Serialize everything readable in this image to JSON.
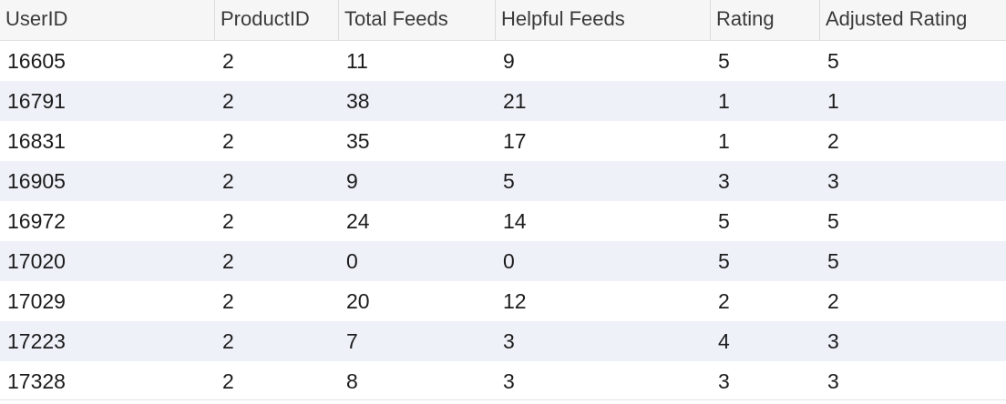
{
  "table": {
    "columns": [
      "UserID",
      "ProductID",
      "Total Feeds",
      "Helpful Feeds",
      "Rating",
      "Adjusted Rating"
    ],
    "rows": [
      [
        "16605",
        "2",
        "11",
        "9",
        "5",
        "5"
      ],
      [
        "16791",
        "2",
        "38",
        "21",
        "1",
        "1"
      ],
      [
        "16831",
        "2",
        "35",
        "17",
        "1",
        "2"
      ],
      [
        "16905",
        "2",
        "9",
        "5",
        "3",
        "3"
      ],
      [
        "16972",
        "2",
        "24",
        "14",
        "5",
        "5"
      ],
      [
        "17020",
        "2",
        "0",
        "0",
        "5",
        "5"
      ],
      [
        "17029",
        "2",
        "20",
        "12",
        "2",
        "2"
      ],
      [
        "17223",
        "2",
        "7",
        "3",
        "4",
        "3"
      ],
      [
        "17328",
        "2",
        "8",
        "3",
        "3",
        "3"
      ]
    ]
  },
  "colors": {
    "header_bg": "#f6f6f6",
    "row_alt_bg": "#eef1f8",
    "row_bg": "#ffffff"
  }
}
